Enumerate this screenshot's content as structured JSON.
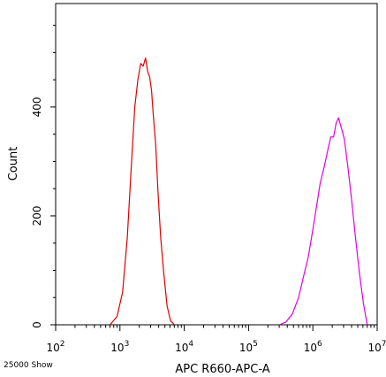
{
  "chart_data": {
    "type": "line",
    "subtype": "flow-cytometry-histogram",
    "xlabel": "APC R660-APC-A",
    "ylabel": "Count",
    "x_scale": "log",
    "xlim": [
      100,
      10000000
    ],
    "ylim": [
      0,
      590
    ],
    "x_ticks": [
      100,
      1000,
      10000,
      100000,
      1000000,
      10000000
    ],
    "x_tick_labels": [
      {
        "base": "10",
        "exp": "2"
      },
      {
        "base": "10",
        "exp": "3"
      },
      {
        "base": "10",
        "exp": "4"
      },
      {
        "base": "10",
        "exp": "5"
      },
      {
        "base": "10",
        "exp": "6"
      },
      {
        "base": "10",
        "exp": "7"
      }
    ],
    "y_ticks": [
      0,
      200,
      400
    ],
    "y_tick_labels": [
      "0",
      "200",
      "400"
    ],
    "grid": false,
    "series": [
      {
        "color": "#e00000",
        "x": [
          700,
          900,
          1100,
          1300,
          1500,
          1700,
          1900,
          2100,
          2300,
          2500,
          2700,
          2900,
          3100,
          3300,
          3600,
          3900,
          4300,
          4800,
          5400,
          6100,
          7000
        ],
        "y": [
          0,
          15,
          60,
          160,
          290,
          400,
          450,
          480,
          475,
          490,
          465,
          455,
          430,
          385,
          330,
          245,
          160,
          95,
          35,
          8,
          0
        ]
      },
      {
        "color": "#e000e0",
        "x": [
          300000,
          380000,
          480000,
          600000,
          720000,
          850000,
          1000000,
          1150000,
          1300000,
          1500000,
          1700000,
          1900000,
          2100000,
          2300000,
          2500000,
          2800000,
          3100000,
          3500000,
          4000000,
          4600000,
          5300000,
          6100000,
          7000000
        ],
        "y": [
          0,
          5,
          20,
          50,
          90,
          125,
          175,
          220,
          260,
          290,
          320,
          345,
          345,
          370,
          380,
          360,
          340,
          290,
          230,
          160,
          95,
          40,
          0
        ]
      }
    ]
  },
  "footer": {
    "note": "25000 Show"
  }
}
